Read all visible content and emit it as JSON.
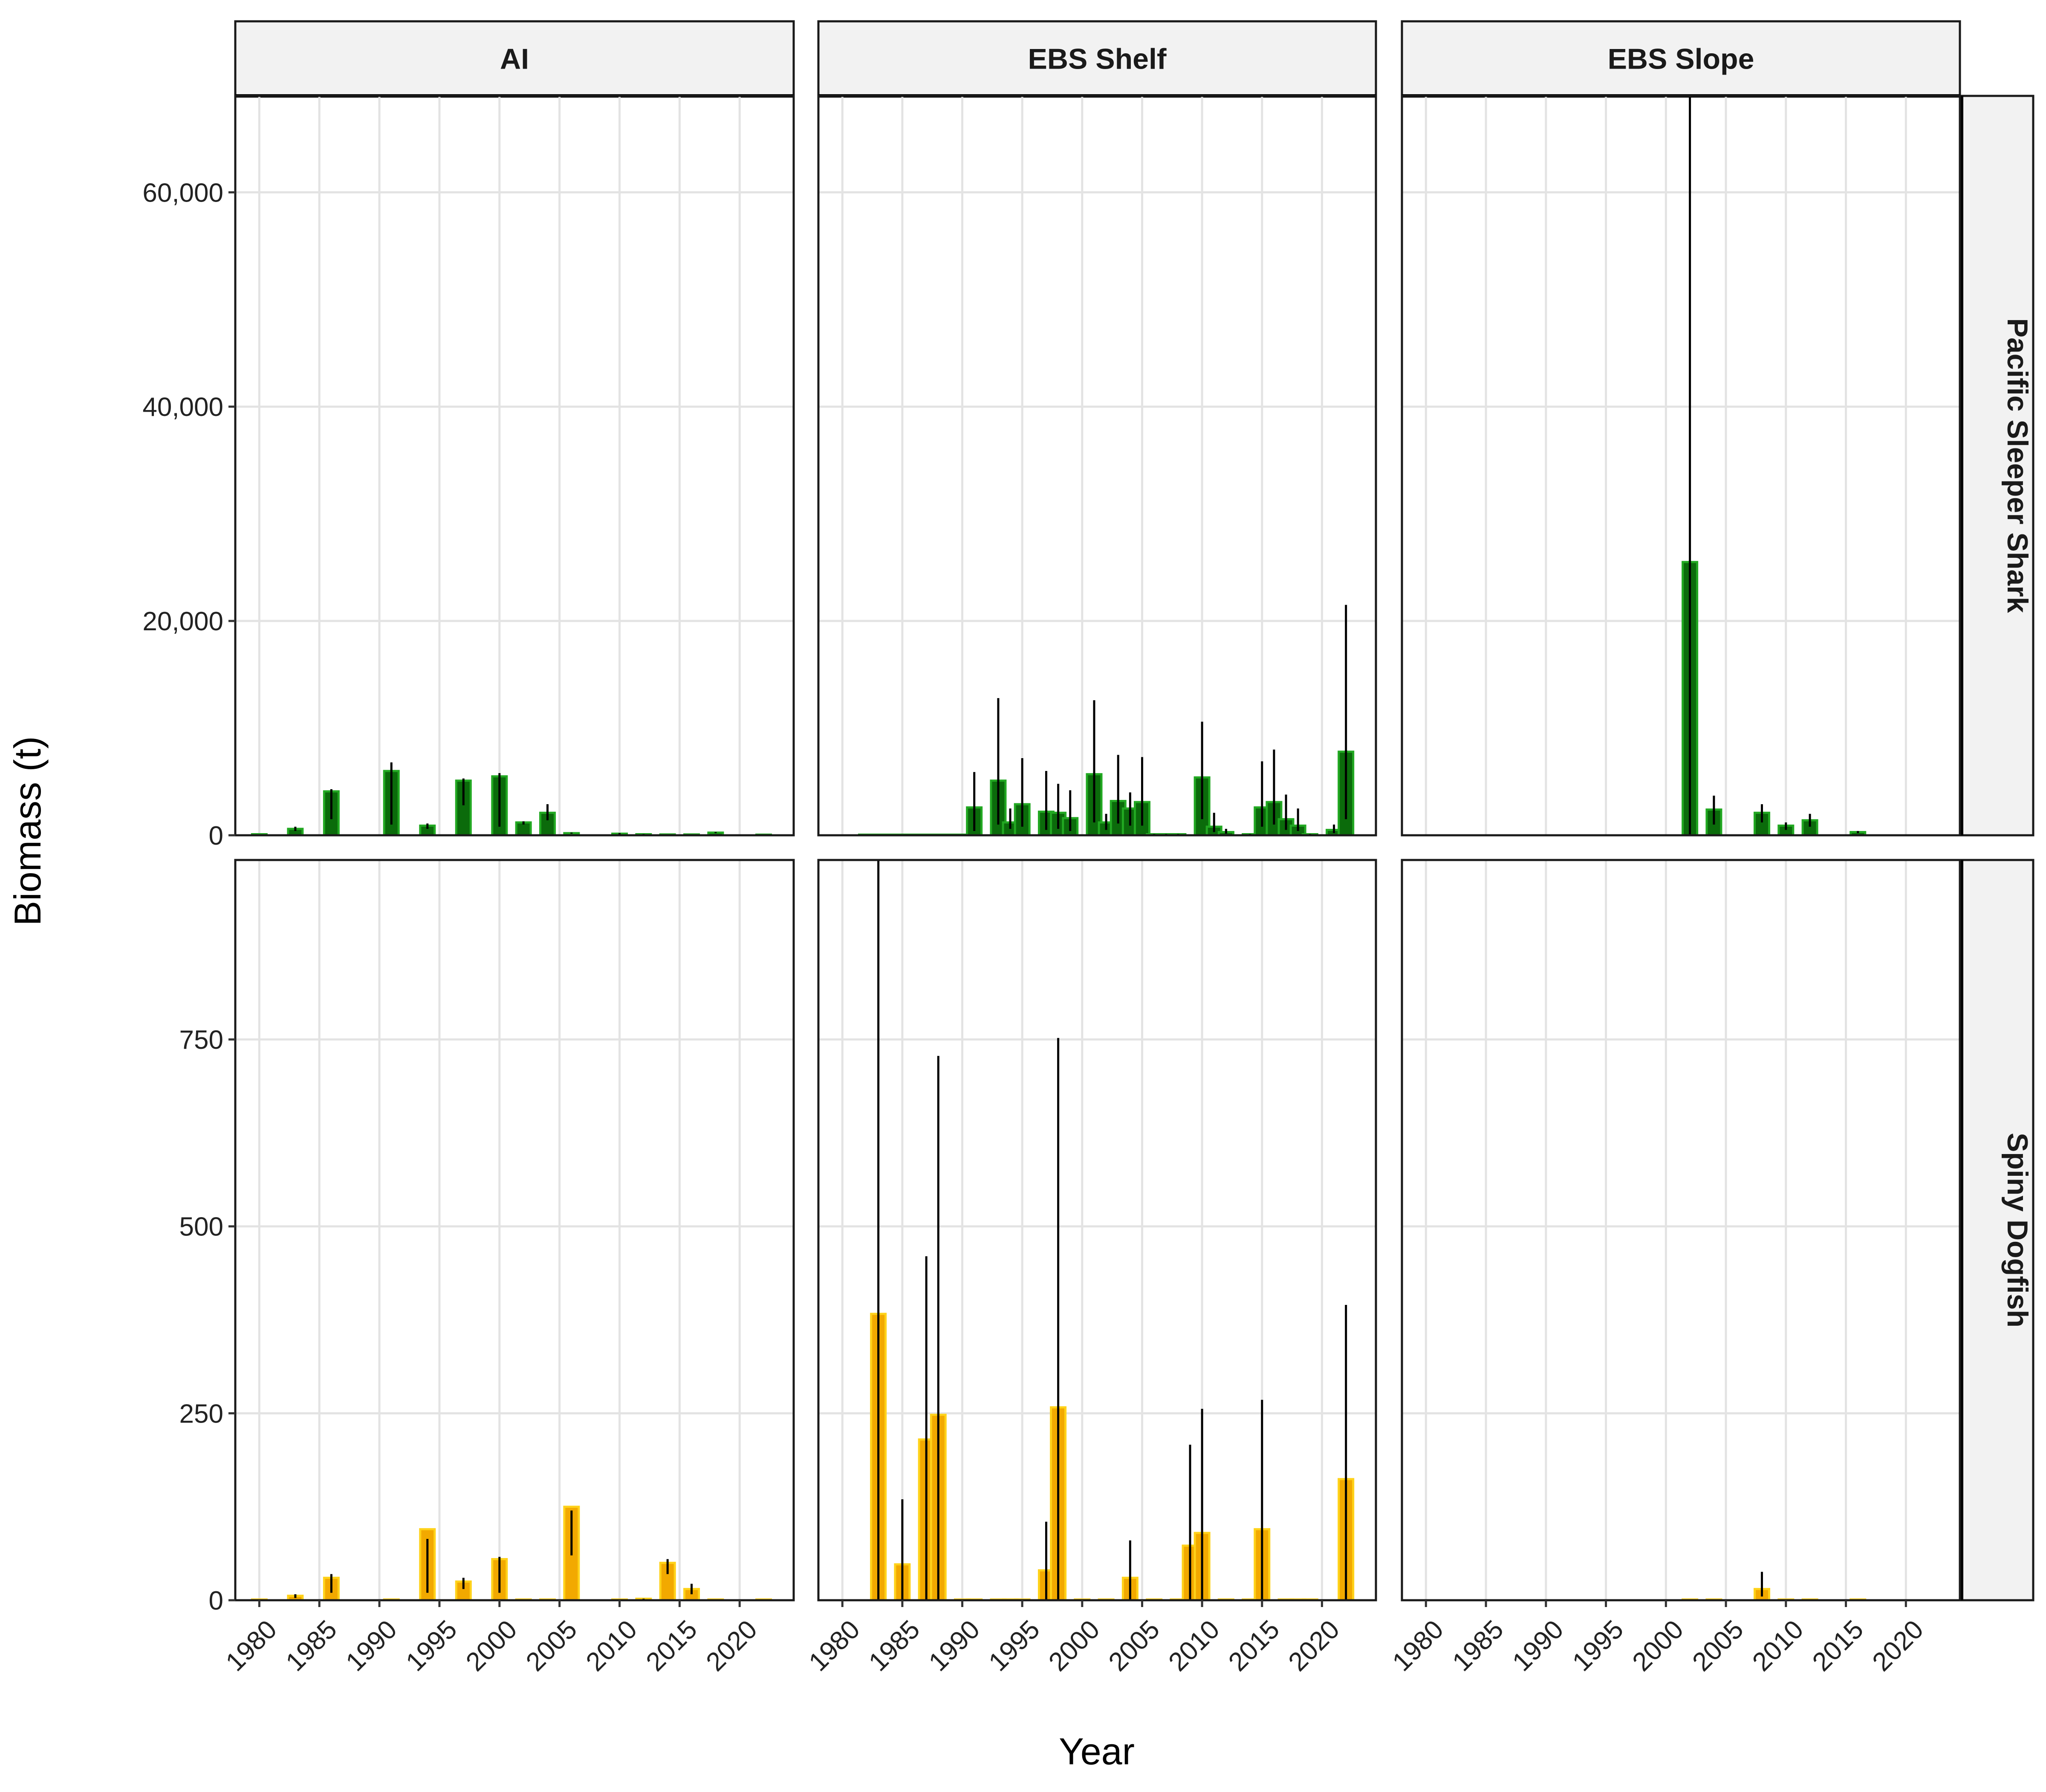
{
  "chart_data": {
    "type": "bar",
    "layout": "facet grid: rows = species, columns = survey region; y scales free by row",
    "xlabel": "Year",
    "ylabel": "Biomass (t)",
    "columns": [
      "AI",
      "EBS Shelf",
      "EBS Slope"
    ],
    "rows": [
      "Pacific Sleeper Shark",
      "Spiny Dogfish"
    ],
    "x_ticks": [
      1980,
      1985,
      1990,
      1995,
      2000,
      2005,
      2010,
      2015,
      2020
    ],
    "xlim": [
      1978,
      2024.5
    ],
    "grid": true,
    "error_bars": true,
    "colors": {
      "Pacific Sleeper Shark": {
        "fill": "#0b6b0b",
        "outline": "#22a822"
      },
      "Spiny Dogfish": {
        "fill": "#f2a900",
        "outline": "#ffd21a"
      },
      "strip_background": "#f2f2f2",
      "grid": "#e3e3e3",
      "error_bar": "#000000"
    },
    "panels_by_row": [
      {
        "row": "Pacific Sleeper Shark",
        "ylim": [
          0,
          69000
        ],
        "y_ticks": [
          0,
          20000,
          40000,
          60000
        ],
        "y_tick_labels": [
          "0",
          "20,000",
          "40,000",
          "60,000"
        ],
        "panels": [
          {
            "column": "AI",
            "bars": [
              {
                "year": 1980,
                "value": 100,
                "lo": 100,
                "hi": 100
              },
              {
                "year": 1983,
                "value": 600,
                "lo": 400,
                "hi": 800
              },
              {
                "year": 1986,
                "value": 4100,
                "lo": 1500,
                "hi": 4300
              },
              {
                "year": 1991,
                "value": 6000,
                "lo": 1000,
                "hi": 6800
              },
              {
                "year": 1994,
                "value": 900,
                "lo": 600,
                "hi": 1100
              },
              {
                "year": 1997,
                "value": 5100,
                "lo": 2800,
                "hi": 5300
              },
              {
                "year": 2000,
                "value": 5500,
                "lo": 800,
                "hi": 5800
              },
              {
                "year": 2002,
                "value": 1200,
                "lo": 1000,
                "hi": 1300
              },
              {
                "year": 2004,
                "value": 2100,
                "lo": 1400,
                "hi": 2900
              },
              {
                "year": 2006,
                "value": 200,
                "lo": 150,
                "hi": 250
              },
              {
                "year": 2010,
                "value": 150,
                "lo": 100,
                "hi": 200
              },
              {
                "year": 2012,
                "value": 100,
                "lo": 80,
                "hi": 120
              },
              {
                "year": 2014,
                "value": 80,
                "lo": 60,
                "hi": 100
              },
              {
                "year": 2016,
                "value": 80,
                "lo": 60,
                "hi": 100
              },
              {
                "year": 2018,
                "value": 250,
                "lo": 200,
                "hi": 300
              },
              {
                "year": 2022,
                "value": 50,
                "lo": 40,
                "hi": 60
              }
            ]
          },
          {
            "column": "EBS Shelf",
            "bars": [
              {
                "year": 1982,
                "value": 50,
                "lo": 50,
                "hi": 50
              },
              {
                "year": 1983,
                "value": 50,
                "lo": 50,
                "hi": 50
              },
              {
                "year": 1984,
                "value": 50,
                "lo": 50,
                "hi": 50
              },
              {
                "year": 1985,
                "value": 50,
                "lo": 50,
                "hi": 50
              },
              {
                "year": 1986,
                "value": 50,
                "lo": 50,
                "hi": 50
              },
              {
                "year": 1987,
                "value": 50,
                "lo": 50,
                "hi": 50
              },
              {
                "year": 1988,
                "value": 50,
                "lo": 50,
                "hi": 50
              },
              {
                "year": 1989,
                "value": 50,
                "lo": 50,
                "hi": 50
              },
              {
                "year": 1990,
                "value": 50,
                "lo": 50,
                "hi": 50
              },
              {
                "year": 1991,
                "value": 2600,
                "lo": 400,
                "hi": 5900
              },
              {
                "year": 1993,
                "value": 5100,
                "lo": 1000,
                "hi": 12800
              },
              {
                "year": 1994,
                "value": 1200,
                "lo": 600,
                "hi": 2500
              },
              {
                "year": 1995,
                "value": 2900,
                "lo": 800,
                "hi": 7200
              },
              {
                "year": 1997,
                "value": 2200,
                "lo": 500,
                "hi": 6000
              },
              {
                "year": 1998,
                "value": 2100,
                "lo": 600,
                "hi": 4800
              },
              {
                "year": 1999,
                "value": 1600,
                "lo": 400,
                "hi": 4200
              },
              {
                "year": 2001,
                "value": 5700,
                "lo": 1200,
                "hi": 12600
              },
              {
                "year": 2002,
                "value": 1200,
                "lo": 500,
                "hi": 2000
              },
              {
                "year": 2003,
                "value": 3200,
                "lo": 1100,
                "hi": 7500
              },
              {
                "year": 2004,
                "value": 2500,
                "lo": 900,
                "hi": 4000
              },
              {
                "year": 2005,
                "value": 3100,
                "lo": 900,
                "hi": 7300
              },
              {
                "year": 2006,
                "value": 100,
                "lo": 80,
                "hi": 120
              },
              {
                "year": 2007,
                "value": 100,
                "lo": 80,
                "hi": 120
              },
              {
                "year": 2008,
                "value": 100,
                "lo": 80,
                "hi": 120
              },
              {
                "year": 2010,
                "value": 5400,
                "lo": 1500,
                "hi": 10600
              },
              {
                "year": 2011,
                "value": 800,
                "lo": 300,
                "hi": 2100
              },
              {
                "year": 2012,
                "value": 300,
                "lo": 150,
                "hi": 600
              },
              {
                "year": 2014,
                "value": 100,
                "lo": 80,
                "hi": 120
              },
              {
                "year": 2015,
                "value": 2600,
                "lo": 800,
                "hi": 6900
              },
              {
                "year": 2016,
                "value": 3100,
                "lo": 1000,
                "hi": 8000
              },
              {
                "year": 2017,
                "value": 1500,
                "lo": 500,
                "hi": 3800
              },
              {
                "year": 2018,
                "value": 900,
                "lo": 400,
                "hi": 2500
              },
              {
                "year": 2019,
                "value": 100,
                "lo": 80,
                "hi": 120
              },
              {
                "year": 2021,
                "value": 500,
                "lo": 200,
                "hi": 1000
              },
              {
                "year": 2022,
                "value": 7800,
                "lo": 1500,
                "hi": 21500
              }
            ]
          },
          {
            "column": "EBS Slope",
            "bars": [
              {
                "year": 2002,
                "value": 25500,
                "lo": 0,
                "hi": 69000
              },
              {
                "year": 2004,
                "value": 2400,
                "lo": 1000,
                "hi": 3700
              },
              {
                "year": 2008,
                "value": 2100,
                "lo": 1200,
                "hi": 2900
              },
              {
                "year": 2010,
                "value": 900,
                "lo": 500,
                "hi": 1200
              },
              {
                "year": 2012,
                "value": 1400,
                "lo": 800,
                "hi": 2000
              },
              {
                "year": 2016,
                "value": 300,
                "lo": 200,
                "hi": 400
              }
            ]
          }
        ]
      },
      {
        "row": "Spiny Dogfish",
        "ylim": [
          0,
          990
        ],
        "y_ticks": [
          0,
          250,
          500,
          750
        ],
        "y_tick_labels": [
          "0",
          "250",
          "500",
          "750"
        ],
        "panels": [
          {
            "column": "AI",
            "bars": [
              {
                "year": 1980,
                "value": 1,
                "lo": 1,
                "hi": 1
              },
              {
                "year": 1983,
                "value": 6,
                "lo": 3,
                "hi": 8
              },
              {
                "year": 1986,
                "value": 30,
                "lo": 10,
                "hi": 35
              },
              {
                "year": 1991,
                "value": 1,
                "lo": 1,
                "hi": 1
              },
              {
                "year": 1994,
                "value": 95,
                "lo": 10,
                "hi": 82
              },
              {
                "year": 1997,
                "value": 25,
                "lo": 15,
                "hi": 30
              },
              {
                "year": 2000,
                "value": 55,
                "lo": 10,
                "hi": 58
              },
              {
                "year": 2002,
                "value": 1,
                "lo": 1,
                "hi": 1
              },
              {
                "year": 2004,
                "value": 1,
                "lo": 1,
                "hi": 1
              },
              {
                "year": 2006,
                "value": 125,
                "lo": 60,
                "hi": 120
              },
              {
                "year": 2010,
                "value": 1,
                "lo": 1,
                "hi": 1
              },
              {
                "year": 2012,
                "value": 2,
                "lo": 1,
                "hi": 2
              },
              {
                "year": 2014,
                "value": 50,
                "lo": 35,
                "hi": 55
              },
              {
                "year": 2016,
                "value": 15,
                "lo": 8,
                "hi": 22
              },
              {
                "year": 2018,
                "value": 1,
                "lo": 1,
                "hi": 1
              },
              {
                "year": 2022,
                "value": 1,
                "lo": 1,
                "hi": 1
              }
            ]
          },
          {
            "column": "EBS Shelf",
            "bars": [
              {
                "year": 1983,
                "value": 383,
                "lo": 0,
                "hi": 990
              },
              {
                "year": 1985,
                "value": 48,
                "lo": 0,
                "hi": 135
              },
              {
                "year": 1987,
                "value": 215,
                "lo": 0,
                "hi": 460
              },
              {
                "year": 1988,
                "value": 248,
                "lo": 0,
                "hi": 728
              },
              {
                "year": 1990,
                "value": 1,
                "lo": 1,
                "hi": 1
              },
              {
                "year": 1991,
                "value": 1,
                "lo": 1,
                "hi": 1
              },
              {
                "year": 1993,
                "value": 1,
                "lo": 1,
                "hi": 1
              },
              {
                "year": 1994,
                "value": 1,
                "lo": 1,
                "hi": 1
              },
              {
                "year": 1995,
                "value": 1,
                "lo": 1,
                "hi": 1
              },
              {
                "year": 1997,
                "value": 40,
                "lo": 0,
                "hi": 105
              },
              {
                "year": 1998,
                "value": 258,
                "lo": 0,
                "hi": 752
              },
              {
                "year": 2000,
                "value": 1,
                "lo": 1,
                "hi": 1
              },
              {
                "year": 2002,
                "value": 1,
                "lo": 1,
                "hi": 1
              },
              {
                "year": 2004,
                "value": 30,
                "lo": 0,
                "hi": 80
              },
              {
                "year": 2006,
                "value": 1,
                "lo": 1,
                "hi": 1
              },
              {
                "year": 2008,
                "value": 1,
                "lo": 1,
                "hi": 1
              },
              {
                "year": 2009,
                "value": 73,
                "lo": 0,
                "hi": 208
              },
              {
                "year": 2010,
                "value": 90,
                "lo": 0,
                "hi": 256
              },
              {
                "year": 2012,
                "value": 1,
                "lo": 1,
                "hi": 1
              },
              {
                "year": 2014,
                "value": 1,
                "lo": 1,
                "hi": 1
              },
              {
                "year": 2015,
                "value": 95,
                "lo": 0,
                "hi": 268
              },
              {
                "year": 2017,
                "value": 1,
                "lo": 1,
                "hi": 1
              },
              {
                "year": 2018,
                "value": 1,
                "lo": 1,
                "hi": 1
              },
              {
                "year": 2019,
                "value": 1,
                "lo": 1,
                "hi": 1
              },
              {
                "year": 2022,
                "value": 162,
                "lo": 0,
                "hi": 395
              }
            ]
          },
          {
            "column": "EBS Slope",
            "bars": [
              {
                "year": 2002,
                "value": 1,
                "lo": 1,
                "hi": 1
              },
              {
                "year": 2004,
                "value": 1,
                "lo": 1,
                "hi": 1
              },
              {
                "year": 2008,
                "value": 15,
                "lo": 5,
                "hi": 38
              },
              {
                "year": 2010,
                "value": 1,
                "lo": 1,
                "hi": 1
              },
              {
                "year": 2012,
                "value": 1,
                "lo": 1,
                "hi": 1
              },
              {
                "year": 2016,
                "value": 1,
                "lo": 1,
                "hi": 1
              }
            ]
          }
        ]
      }
    ]
  }
}
